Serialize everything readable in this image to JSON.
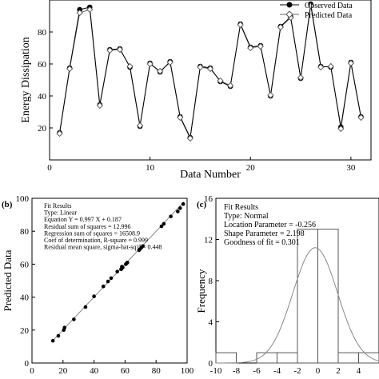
{
  "chart_data": [
    {
      "panel": "a",
      "type": "line",
      "xlabel": "Data Number",
      "ylabel": "Energy Dissipation",
      "xlim": [
        0,
        32
      ],
      "ylim": [
        0,
        100
      ],
      "xticks": [
        "0",
        "10",
        "20",
        "30"
      ],
      "yticks": [
        "20",
        "40",
        "60",
        "80"
      ],
      "legend_position": "top-right",
      "x": [
        1,
        2,
        3,
        4,
        5,
        6,
        7,
        8,
        9,
        10,
        11,
        12,
        13,
        14,
        15,
        16,
        17,
        18,
        19,
        20,
        21,
        22,
        23,
        24,
        25,
        26,
        27,
        28,
        29,
        30,
        31
      ],
      "series": [
        {
          "name": "Observed Data",
          "marker": "filled-circle",
          "values": [
            17,
            57.5,
            94,
            95.5,
            34.5,
            69,
            69.5,
            58,
            21,
            60.5,
            55,
            61.5,
            27,
            14,
            58.5,
            57.5,
            49,
            46,
            85,
            70.5,
            71.5,
            40,
            83.5,
            89.5,
            51,
            97.5,
            58.5,
            58,
            20.5,
            61,
            27
          ]
        },
        {
          "name": "Predicted Data",
          "marker": "open-diamond",
          "values": [
            16.5,
            57,
            92,
            94,
            34,
            68.5,
            69,
            58.5,
            21.5,
            60,
            55.5,
            61,
            26.5,
            13.5,
            58,
            57,
            49.5,
            46.5,
            84.5,
            70,
            71,
            40.5,
            83,
            89,
            51.5,
            96.5,
            58,
            58.5,
            19.5,
            60.5,
            26.5
          ]
        }
      ]
    },
    {
      "panel": "b",
      "panel_label": "(b)",
      "type": "scatter",
      "xlabel": "",
      "ylabel": "Predicted Data",
      "xlim": [
        0,
        100
      ],
      "ylim": [
        0,
        100
      ],
      "xticks": [
        "0",
        "20",
        "40",
        "60",
        "80",
        "100"
      ],
      "yticks": [
        "0",
        "20",
        "40",
        "60",
        "80",
        "100"
      ],
      "fit_results": [
        "Fit Results",
        "Type: Linear",
        "Equation Y = 0.997 X + 0.187",
        "Residual sum of squares = 12.996",
        "Regression sum of squares = 16508.9",
        "Coef of determination, R-square = 0.999",
        "Residual mean square, sigma-hat-sq'd = 0.448"
      ],
      "fit_line": {
        "slope": 0.997,
        "intercept": 0.187,
        "x_range": [
          13,
          98
        ]
      },
      "points": [
        [
          13.5,
          13.5
        ],
        [
          17,
          16.5
        ],
        [
          20.5,
          20
        ],
        [
          21,
          21.5
        ],
        [
          27,
          26.5
        ],
        [
          34.5,
          34
        ],
        [
          40,
          40.5
        ],
        [
          46,
          46.5
        ],
        [
          49,
          49.5
        ],
        [
          51,
          51.5
        ],
        [
          55,
          55.5
        ],
        [
          57.5,
          57
        ],
        [
          57.5,
          57
        ],
        [
          58,
          58.5
        ],
        [
          58,
          58.5
        ],
        [
          58.5,
          58
        ],
        [
          60.5,
          60
        ],
        [
          61,
          60.5
        ],
        [
          61.5,
          61
        ],
        [
          69,
          68.5
        ],
        [
          69.5,
          69
        ],
        [
          70.5,
          70
        ],
        [
          71.5,
          71
        ],
        [
          83.5,
          83
        ],
        [
          85,
          84.5
        ],
        [
          89.5,
          89
        ],
        [
          94,
          92
        ],
        [
          95.5,
          94
        ],
        [
          97.5,
          96.5
        ]
      ]
    },
    {
      "panel": "c",
      "panel_label": "(c)",
      "type": "bar",
      "ylabel": "Frequency",
      "xlim": [
        -10,
        6
      ],
      "ylim": [
        0,
        16
      ],
      "xticks": [
        "-10",
        "-8",
        "-6",
        "-4",
        "-2",
        "0",
        "2",
        "4"
      ],
      "yticks": [
        "0",
        "4",
        "8",
        "12",
        "16"
      ],
      "fit_results": [
        "Fit Results",
        "Type: Normal",
        "Location Parameter = -0.256",
        "Shape Parameter = 2.198",
        "Goodness of fit = 0.301"
      ],
      "bins": [
        [
          -10,
          -8
        ],
        [
          -8,
          -6
        ],
        [
          -6,
          -4
        ],
        [
          -4,
          -2
        ],
        [
          -2,
          0
        ],
        [
          0,
          2
        ],
        [
          2,
          4
        ],
        [
          4,
          6
        ]
      ],
      "values": [
        1,
        0,
        1,
        1,
        13,
        13,
        1,
        1
      ],
      "normal_curve": {
        "mean": -0.256,
        "sd": 2.198,
        "peak": 11.2
      }
    }
  ]
}
